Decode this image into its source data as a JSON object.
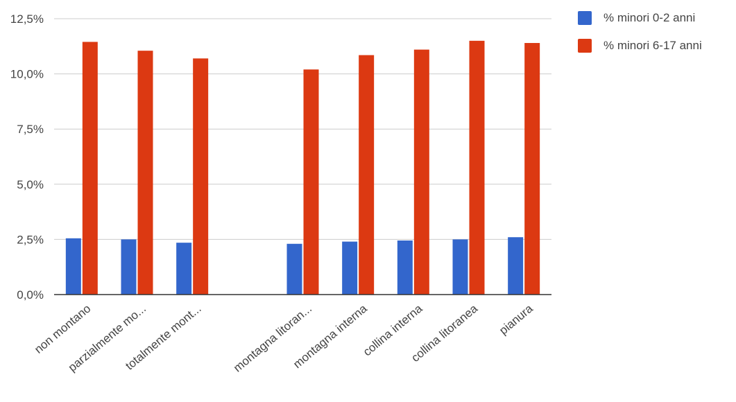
{
  "chart_data": {
    "type": "bar",
    "categories": [
      "non montano",
      "parzialmente mo...",
      "totalmente mont...",
      "",
      "montagna litoran...",
      "montagna interna",
      "collina interna",
      "collina litoranea",
      "pianura"
    ],
    "series": [
      {
        "name": "% minori 0-2 anni",
        "color": "#3366cc",
        "values": [
          2.55,
          2.5,
          2.35,
          null,
          2.3,
          2.4,
          2.45,
          2.5,
          2.6
        ]
      },
      {
        "name": "% minori 6-17 anni",
        "color": "#dc3912",
        "values": [
          11.45,
          11.05,
          10.7,
          null,
          10.2,
          10.85,
          11.1,
          11.5,
          11.4
        ]
      }
    ],
    "y_ticks": [
      "0,0%",
      "2,5%",
      "5,0%",
      "7,5%",
      "10,0%",
      "12,5%"
    ],
    "ylim": [
      0,
      12.5
    ],
    "grid": true,
    "legend_position": "top-right",
    "title": "",
    "xlabel": "",
    "ylabel": ""
  }
}
